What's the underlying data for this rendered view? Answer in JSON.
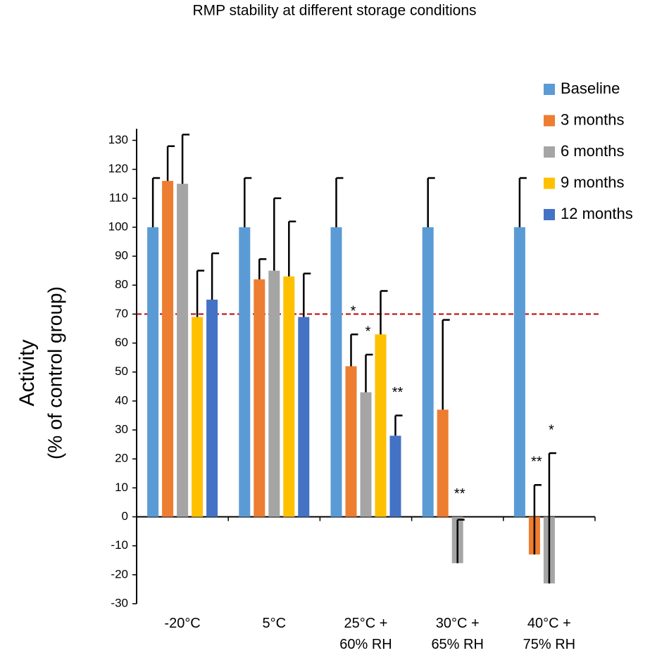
{
  "chart_data": {
    "type": "bar",
    "title": "RMP stability at different storage conditions",
    "ylabel": "Activity",
    "ylabel_sub": "(% of control group)",
    "categories": [
      "-20°C",
      "5°C",
      "25°C +\n60% RH",
      "30°C +\n65% RH",
      "40°C +\n75% RH"
    ],
    "series": [
      {
        "name": "Baseline",
        "color": "#5b9bd5",
        "values": [
          100,
          100,
          100,
          100,
          100
        ],
        "errors": [
          17,
          17,
          17,
          17,
          17
        ],
        "annotations": [
          null,
          null,
          null,
          null,
          null
        ]
      },
      {
        "name": "3 months",
        "color": "#ed7d31",
        "values": [
          116,
          82,
          52,
          37,
          -13
        ],
        "errors": [
          12,
          7,
          11,
          31,
          24
        ],
        "annotations": [
          null,
          null,
          "*",
          null,
          "**"
        ]
      },
      {
        "name": "6 months",
        "color": "#a5a5a5",
        "values": [
          115,
          85,
          43,
          -16,
          -23
        ],
        "errors": [
          17,
          25,
          13,
          15,
          45
        ],
        "annotations": [
          null,
          null,
          "*",
          "**",
          "*"
        ]
      },
      {
        "name": "9 months",
        "color": "#ffc000",
        "values": [
          69,
          83,
          63,
          null,
          null
        ],
        "errors": [
          16,
          19,
          15,
          null,
          null
        ],
        "annotations": [
          null,
          null,
          null,
          null,
          null
        ]
      },
      {
        "name": "12 months",
        "color": "#4472c4",
        "values": [
          75,
          69,
          28,
          null,
          null
        ],
        "errors": [
          16,
          15,
          7,
          null,
          null
        ],
        "annotations": [
          null,
          null,
          "**",
          null,
          null
        ]
      }
    ],
    "reference_line": 70,
    "reference_color": "#c00000",
    "ylim": [
      -30,
      134
    ],
    "yticks": [
      -30,
      -20,
      -10,
      0,
      10,
      20,
      30,
      40,
      50,
      60,
      70,
      80,
      90,
      100,
      110,
      120,
      130
    ],
    "legend": "top-right"
  }
}
